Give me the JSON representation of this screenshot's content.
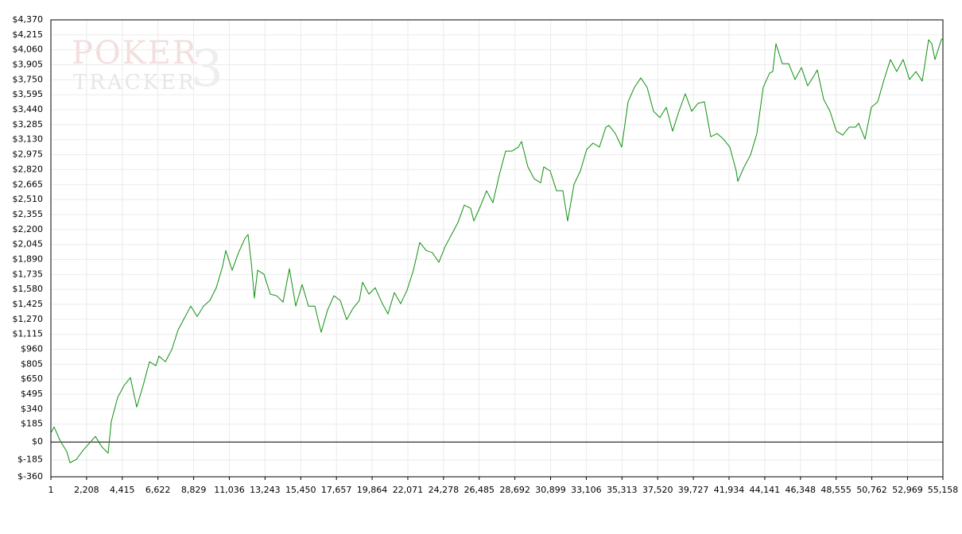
{
  "chart_data": {
    "type": "line",
    "watermark": {
      "brand": "POKER",
      "product": "TRACKER",
      "version": "3"
    },
    "color": "#109010",
    "grid": true,
    "xlim": [
      1,
      55158
    ],
    "ylim": [
      -360,
      4370
    ],
    "xticks": [
      1,
      {
        "value": 2208,
        "label": "2,208"
      },
      {
        "value": 4415,
        "label": "4,415"
      },
      {
        "value": 6622,
        "label": "6,622"
      },
      {
        "value": 8829,
        "label": "8,829"
      },
      {
        "value": 11036,
        "label": "11,036"
      },
      {
        "value": 13243,
        "label": "13,243"
      },
      {
        "value": 15450,
        "label": "15,450"
      },
      {
        "value": 17657,
        "label": "17,657"
      },
      {
        "value": 19864,
        "label": "19,864"
      },
      {
        "value": 22071,
        "label": "22,071"
      },
      {
        "value": 24278,
        "label": "24,278"
      },
      {
        "value": 26485,
        "label": "26,485"
      },
      {
        "value": 28692,
        "label": "28,692"
      },
      {
        "value": 30899,
        "label": "30,899"
      },
      {
        "value": 33106,
        "label": "33,106"
      },
      {
        "value": 35313,
        "label": "35,313"
      },
      {
        "value": 37520,
        "label": "37,520"
      },
      {
        "value": 39727,
        "label": "39,727"
      },
      {
        "value": 41934,
        "label": "41,934"
      },
      {
        "value": 44141,
        "label": "44,141"
      },
      {
        "value": 46348,
        "label": "46,348"
      },
      {
        "value": 48555,
        "label": "48,555"
      },
      {
        "value": 50762,
        "label": "50,762"
      },
      {
        "value": 52969,
        "label": "52,969"
      },
      {
        "value": 55158,
        "label": "55,158"
      }
    ],
    "yticks": [
      {
        "value": 4370,
        "label": "$4,370"
      },
      {
        "value": 4215,
        "label": "$4,215"
      },
      {
        "value": 4060,
        "label": "$4,060"
      },
      {
        "value": 3905,
        "label": "$3,905"
      },
      {
        "value": 3750,
        "label": "$3,750"
      },
      {
        "value": 3595,
        "label": "$3,595"
      },
      {
        "value": 3440,
        "label": "$3,440"
      },
      {
        "value": 3285,
        "label": "$3,285"
      },
      {
        "value": 3130,
        "label": "$3,130"
      },
      {
        "value": 2975,
        "label": "$2,975"
      },
      {
        "value": 2820,
        "label": "$2,820"
      },
      {
        "value": 2665,
        "label": "$2,665"
      },
      {
        "value": 2510,
        "label": "$2,510"
      },
      {
        "value": 2355,
        "label": "$2,355"
      },
      {
        "value": 2200,
        "label": "$2,200"
      },
      {
        "value": 2045,
        "label": "$2,045"
      },
      {
        "value": 1890,
        "label": "$1,890"
      },
      {
        "value": 1735,
        "label": "$1,735"
      },
      {
        "value": 1580,
        "label": "$1,580"
      },
      {
        "value": 1425,
        "label": "$1,425"
      },
      {
        "value": 1270,
        "label": "$1,270"
      },
      {
        "value": 1115,
        "label": "$1,115"
      },
      {
        "value": 960,
        "label": "$960"
      },
      {
        "value": 805,
        "label": "$805"
      },
      {
        "value": 650,
        "label": "$650"
      },
      {
        "value": 495,
        "label": "$495"
      },
      {
        "value": 340,
        "label": "$340"
      },
      {
        "value": 185,
        "label": "$185"
      },
      {
        "value": 0,
        "label": "$0"
      },
      {
        "value": -185,
        "label": "$-185"
      },
      {
        "value": -360,
        "label": "$-360"
      }
    ],
    "x": [
      1,
      198,
      591,
      984,
      1181,
      1574,
      1967,
      2361,
      2754,
      3147,
      3540,
      3737,
      4130,
      4524,
      4917,
      5310,
      5703,
      6097,
      6490,
      6687,
      7080,
      7473,
      7866,
      8260,
      8653,
      9046,
      9439,
      9833,
      10226,
      10619,
      10816,
      11209,
      11602,
      11996,
      12193,
      12389,
      12586,
      12783,
      13176,
      13569,
      13963,
      14356,
      14749,
      15142,
      15535,
      15929,
      16322,
      16715,
      17108,
      17502,
      17895,
      18288,
      18681,
      19075,
      19271,
      19665,
      20058,
      20451,
      20844,
      21238,
      21631,
      22024,
      22417,
      22811,
      23204,
      23597,
      23990,
      24384,
      24777,
      25170,
      25563,
      25957,
      26154,
      26547,
      26940,
      27333,
      27727,
      28120,
      28513,
      28906,
      29103,
      29496,
      29889,
      30283,
      30479,
      30873,
      31266,
      31659,
      31954,
      32347,
      32741,
      33134,
      33527,
      33920,
      34314,
      34510,
      34904,
      35297,
      35690,
      36083,
      36477,
      36870,
      37263,
      37657,
      38050,
      38443,
      38836,
      39230,
      39623,
      40016,
      40409,
      40803,
      41196,
      41589,
      41982,
      42376,
      42474,
      42868,
      43261,
      43654,
      44047,
      44441,
      44637,
      44834,
      45227,
      45621,
      46014,
      46407,
      46800,
      47194,
      47390,
      47784,
      48177,
      48570,
      48963,
      49357,
      49750,
      49947,
      50340,
      50733,
      51126,
      51520,
      51913,
      52306,
      52700,
      53093,
      53486,
      53879,
      54273,
      54470,
      54666,
      55059,
      55158
    ],
    "values": [
      91,
      156,
      8,
      -99,
      -214,
      -181,
      -91,
      -16,
      58,
      -49,
      -115,
      214,
      461,
      584,
      667,
      362,
      584,
      831,
      790,
      889,
      831,
      955,
      1160,
      1284,
      1407,
      1300,
      1407,
      1465,
      1597,
      1819,
      1983,
      1778,
      1959,
      2107,
      2148,
      1860,
      1490,
      1778,
      1737,
      1531,
      1514,
      1448,
      1794,
      1407,
      1630,
      1407,
      1407,
      1136,
      1366,
      1514,
      1465,
      1267,
      1383,
      1465,
      1654,
      1531,
      1597,
      1448,
      1325,
      1547,
      1432,
      1572,
      1778,
      2066,
      1983,
      1959,
      1860,
      2025,
      2148,
      2271,
      2453,
      2420,
      2288,
      2436,
      2601,
      2477,
      2765,
      3012,
      3012,
      3053,
      3111,
      2848,
      2724,
      2683,
      2848,
      2806,
      2601,
      2601,
      2288,
      2667,
      2806,
      3029,
      3094,
      3053,
      3259,
      3276,
      3193,
      3053,
      3522,
      3671,
      3769,
      3671,
      3424,
      3358,
      3465,
      3218,
      3424,
      3605,
      3424,
      3506,
      3522,
      3160,
      3193,
      3136,
      3053,
      2806,
      2699,
      2848,
      2971,
      3193,
      3671,
      3819,
      3835,
      4123,
      3917,
      3917,
      3753,
      3876,
      3687,
      3794,
      3852,
      3547,
      3424,
      3218,
      3177,
      3259,
      3259,
      3300,
      3136,
      3465,
      3522,
      3753,
      3959,
      3835,
      3959,
      3753,
      3835,
      3736,
      4164,
      4123,
      3959,
      4164,
      4181
    ]
  }
}
